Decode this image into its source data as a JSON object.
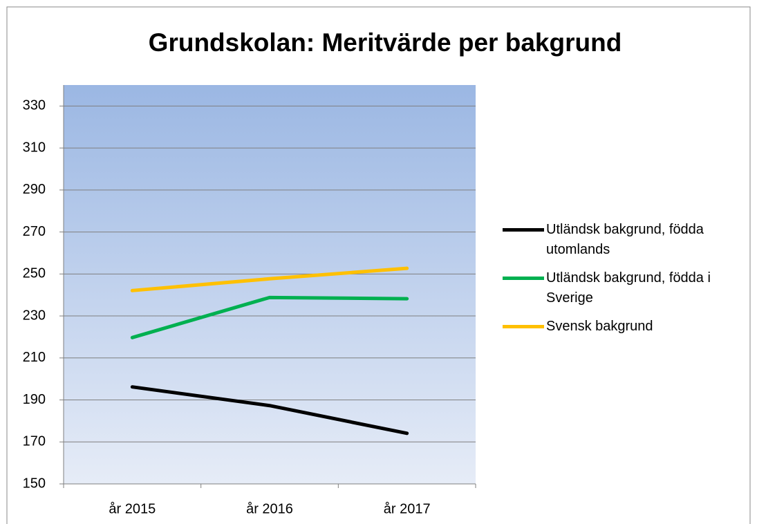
{
  "chart_data": {
    "type": "line",
    "title": "Grundskolan: Meritvärde per bakgrund",
    "categories": [
      "år 2015",
      "år 2016",
      "år 2017"
    ],
    "series": [
      {
        "name": "Utländsk bakgrund, födda utomlands",
        "color": "#000000",
        "values": [
          196.2,
          187.3,
          174.1
        ]
      },
      {
        "name": "Utländsk bakgrund, födda i Sverige",
        "color": "#00b050",
        "values": [
          219.7,
          238.8,
          238.2
        ]
      },
      {
        "name": "Svensk bakgrund",
        "color": "#ffc000",
        "values": [
          242.1,
          247.7,
          252.7
        ]
      }
    ],
    "ylim": [
      150,
      340
    ],
    "yticks": [
      150,
      170,
      190,
      210,
      230,
      250,
      270,
      290,
      310,
      330
    ],
    "grid": true,
    "legend": "right"
  }
}
